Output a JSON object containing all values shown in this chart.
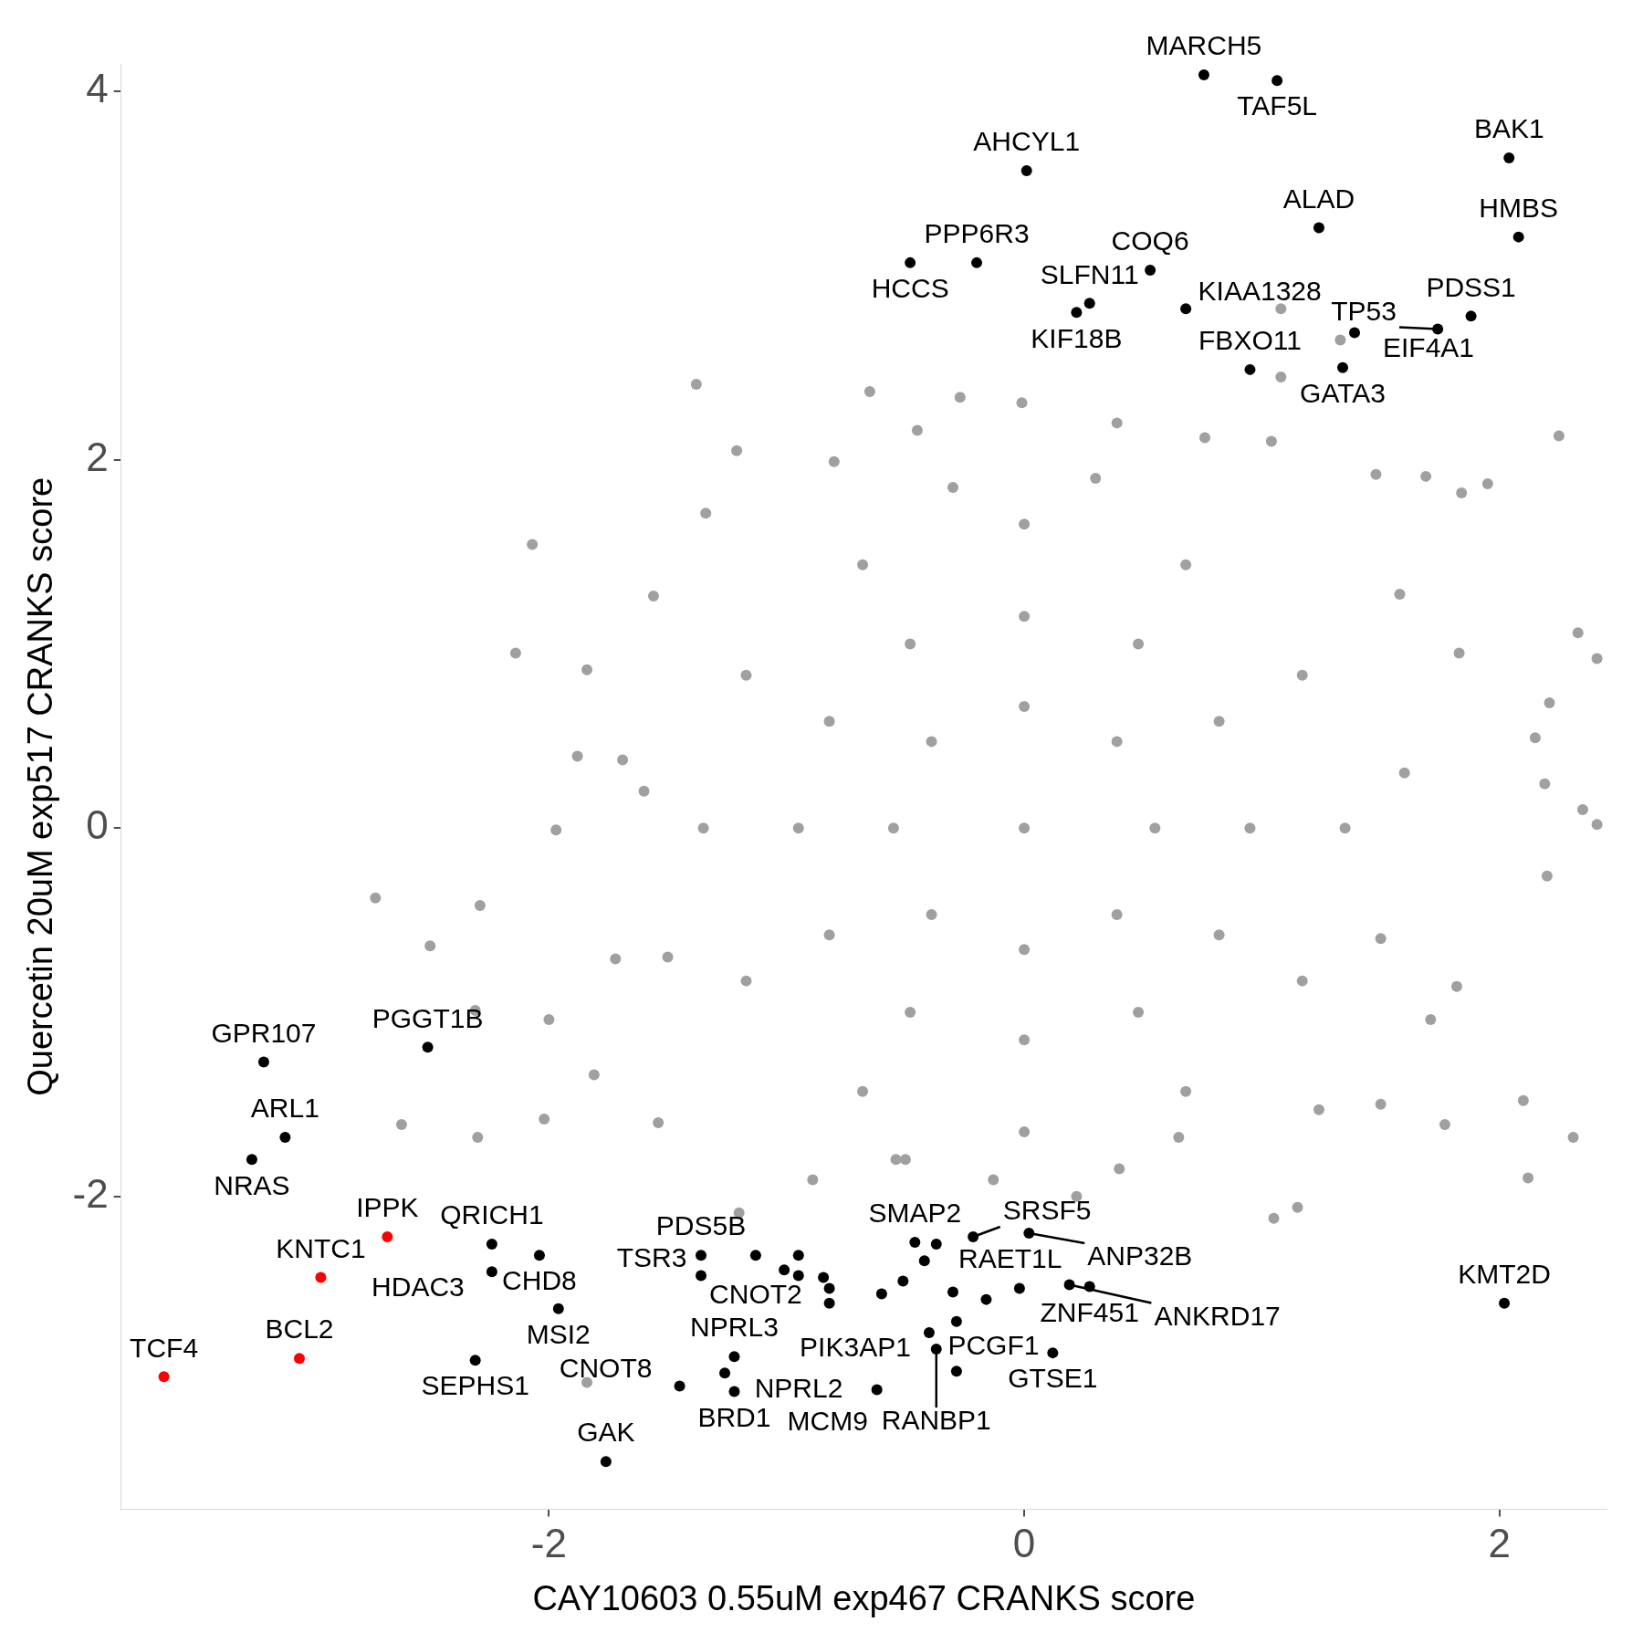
{
  "chart_data": {
    "type": "scatter",
    "xlabel": "CAY10603 0.55uM exp467 CRANKS score",
    "ylabel": "Quercetin 20uM exp517 CRANKS score",
    "xlim": [
      -3.8,
      2.45
    ],
    "ylim": [
      -3.7,
      4.15
    ],
    "xticks": [
      -2,
      0,
      2
    ],
    "yticks": [
      -2,
      0,
      2,
      4
    ],
    "legend": false,
    "marker": "circle",
    "series": [
      {
        "color": "#a0a0a0",
        "x": [
          -1.38,
          -0.65,
          -0.27,
          -0.01,
          -2.07,
          -2.14,
          2.25,
          1.95,
          2.33,
          2.41,
          2.35,
          2.41,
          2.21,
          2.15,
          2.19,
          2.2,
          2.1,
          2.12,
          2.31,
          1.77,
          1.15,
          1.05,
          -2.73,
          -2.5,
          -2.62,
          -2.3,
          -2.31,
          -2.29,
          -2.02,
          -1.84,
          -1.88,
          -1.84,
          -1.56,
          -1.34,
          -1.21,
          -0.8,
          -0.45,
          0.39,
          0.76,
          1.08,
          1.33,
          1.08,
          1.04,
          1.48,
          1.69,
          1.84,
          1.58,
          1.83,
          1.82,
          1.71,
          1.5,
          1.24,
          0.65,
          0.22,
          -0.13,
          -0.54,
          -0.89,
          -1.2,
          -1.54,
          -1.72,
          -1.69,
          -1.97,
          -2.0,
          -1.81,
          1.35,
          1.17,
          0.68,
          0,
          -0.68,
          -1.17,
          -1.35,
          -1.17,
          -0.68,
          0,
          0.68,
          1.17,
          0.95,
          0.82,
          0.48,
          0,
          -0.48,
          -0.82,
          -0.95,
          -0.82,
          -0.48,
          0,
          0.48,
          0.82,
          0.55,
          0.39,
          0,
          -0.39,
          -0.55,
          -0.39,
          0,
          0.39,
          0,
          1.6,
          1.5,
          -1.6,
          -1.5,
          0.3,
          -0.3,
          0.4,
          -0.5
        ],
        "values": [
          2.41,
          2.37,
          2.34,
          2.31,
          1.54,
          0.95,
          2.13,
          1.87,
          1.06,
          0.92,
          0.1,
          0.02,
          0.68,
          0.49,
          0.24,
          -0.26,
          -1.48,
          -1.9,
          -1.68,
          -1.61,
          -2.06,
          -2.12,
          -0.38,
          -0.64,
          -1.61,
          -1.68,
          -0.99,
          -0.42,
          -1.58,
          -3.01,
          0.39,
          0.86,
          1.26,
          1.71,
          2.05,
          1.99,
          2.16,
          2.2,
          2.12,
          2.82,
          2.65,
          2.45,
          2.1,
          1.92,
          1.91,
          1.82,
          1.27,
          0.95,
          -0.86,
          -1.04,
          -1.5,
          -1.53,
          -1.68,
          -2.0,
          -1.91,
          -1.8,
          -1.91,
          -2.09,
          -1.6,
          -0.71,
          0.37,
          -0.01,
          -1.04,
          -1.34,
          0,
          0.83,
          1.43,
          1.65,
          1.43,
          0.83,
          0,
          -0.83,
          -1.43,
          -1.65,
          -1.43,
          -0.83,
          0,
          0.58,
          1.0,
          1.15,
          1.0,
          0.58,
          0,
          -0.58,
          -1.0,
          -1.15,
          -1.0,
          -0.58,
          0,
          0.47,
          0.66,
          0.47,
          0,
          -0.47,
          -0.66,
          -0.47,
          0,
          0.3,
          -0.6,
          0.2,
          -0.7,
          1.9,
          1.85,
          -1.85,
          -1.8
        ]
      },
      {
        "color": "#000000",
        "x": [
          0.756,
          1.064,
          2.04,
          0.01,
          2.08,
          1.24,
          -0.2,
          -0.48,
          0.53,
          0.275,
          0.22,
          0.68,
          1.88,
          1.39,
          1.74,
          0.95,
          1.34,
          -3.2,
          -2.51,
          -3.11,
          -3.25,
          -2.24,
          -2.04,
          -2.24,
          -1.96,
          -2.31,
          -1.76,
          -1.45,
          -1.22,
          -1.26,
          -1.22,
          -1.36,
          -1.36,
          -1.13,
          -0.46,
          -0.37,
          -0.215,
          0.02,
          0.275,
          0.19,
          0.12,
          -0.4,
          -0.37,
          -0.285,
          -0.62,
          2.02,
          -1.01,
          -0.95,
          -0.95,
          -0.845,
          -0.82,
          -0.82,
          -0.6,
          -0.51,
          -0.42,
          -0.3,
          -0.285,
          -0.16,
          -0.02
        ],
        "values": [
          4.09,
          4.06,
          3.64,
          3.57,
          3.21,
          3.26,
          3.07,
          3.07,
          3.03,
          2.85,
          2.8,
          2.82,
          2.78,
          2.69,
          2.71,
          2.49,
          2.5,
          -1.27,
          -1.19,
          -1.68,
          -1.8,
          -2.26,
          -2.32,
          -2.41,
          -2.61,
          -2.89,
          -3.44,
          -3.03,
          -2.87,
          -2.96,
          -3.06,
          -2.32,
          -2.43,
          -2.32,
          -2.25,
          -2.26,
          -2.22,
          -2.2,
          -2.49,
          -2.48,
          -2.85,
          -2.74,
          -2.83,
          -2.95,
          -3.05,
          -2.58,
          -2.4,
          -2.32,
          -2.43,
          -2.44,
          -2.5,
          -2.58,
          -2.53,
          -2.46,
          -2.35,
          -2.52,
          -2.68,
          -2.56,
          -2.5
        ]
      },
      {
        "color": "#ff0000",
        "x": [
          -2.68,
          -2.96,
          -3.05,
          -3.62
        ],
        "values": [
          -2.22,
          -2.44,
          -2.88,
          -2.98
        ]
      }
    ],
    "annotations": [
      {
        "text": "MARCH5",
        "x": 0.756,
        "y": 4.09
      },
      {
        "text": "TAF5L",
        "x": 1.064,
        "y": 4.06
      },
      {
        "text": "BAK1",
        "x": 2.04,
        "y": 3.64
      },
      {
        "text": "AHCYL1",
        "x": 0.01,
        "y": 3.57
      },
      {
        "text": "HMBS",
        "x": 2.08,
        "y": 3.21
      },
      {
        "text": "ALAD",
        "x": 1.24,
        "y": 3.26
      },
      {
        "text": "PPP6R3",
        "x": -0.2,
        "y": 3.07
      },
      {
        "text": "HCCS",
        "x": -0.48,
        "y": 3.07
      },
      {
        "text": "COQ6",
        "x": 0.53,
        "y": 3.03
      },
      {
        "text": "SLFN11",
        "x": 0.275,
        "y": 2.85
      },
      {
        "text": "KIF18B",
        "x": 0.22,
        "y": 2.8
      },
      {
        "text": "KIAA1328",
        "x": 0.68,
        "y": 2.82
      },
      {
        "text": "PDSS1",
        "x": 1.88,
        "y": 2.78
      },
      {
        "text": "EIF4A1",
        "x": 1.39,
        "y": 2.69
      },
      {
        "text": "TP53",
        "x": 1.74,
        "y": 2.71
      },
      {
        "text": "FBXO11",
        "x": 0.95,
        "y": 2.49
      },
      {
        "text": "GATA3",
        "x": 1.34,
        "y": 2.5
      },
      {
        "text": "GPR107",
        "x": -3.2,
        "y": -1.27
      },
      {
        "text": "PGGT1B",
        "x": -2.51,
        "y": -1.19
      },
      {
        "text": "ARL1",
        "x": -3.11,
        "y": -1.68
      },
      {
        "text": "NRAS",
        "x": -3.25,
        "y": -1.8
      },
      {
        "text": "IPPK",
        "x": -2.68,
        "y": -2.22
      },
      {
        "text": "KNTC1",
        "x": -2.96,
        "y": -2.44
      },
      {
        "text": "BCL2",
        "x": -3.05,
        "y": -2.88
      },
      {
        "text": "TCF4",
        "x": -3.62,
        "y": -2.98
      },
      {
        "text": "QRICH1",
        "x": -2.24,
        "y": -2.26
      },
      {
        "text": "CHD8",
        "x": -2.04,
        "y": -2.32
      },
      {
        "text": "HDAC3",
        "x": -2.24,
        "y": -2.41
      },
      {
        "text": "MSI2",
        "x": -1.96,
        "y": -2.61
      },
      {
        "text": "SEPHS1",
        "x": -2.31,
        "y": -2.89
      },
      {
        "text": "GAK",
        "x": -1.76,
        "y": -3.44
      },
      {
        "text": "CNOT8",
        "x": -1.45,
        "y": -3.03
      },
      {
        "text": "NPRL3",
        "x": -1.22,
        "y": -2.87
      },
      {
        "text": "NPRL2",
        "x": -1.26,
        "y": -2.96
      },
      {
        "text": "BRD1",
        "x": -1.22,
        "y": -3.06
      },
      {
        "text": "PDS5B",
        "x": -1.36,
        "y": -2.32
      },
      {
        "text": "TSR3",
        "x": -1.36,
        "y": -2.43
      },
      {
        "text": "CNOT2",
        "x": -1.13,
        "y": -2.32
      },
      {
        "text": "SMAP2",
        "x": -0.46,
        "y": -2.25
      },
      {
        "text": "RAET1L",
        "x": -0.37,
        "y": -2.26
      },
      {
        "text": "SRSF5",
        "x": -0.215,
        "y": -2.22
      },
      {
        "text": "ANP32B",
        "x": 0.02,
        "y": -2.2
      },
      {
        "text": "ZNF451",
        "x": 0.275,
        "y": -2.49
      },
      {
        "text": "ANKRD17",
        "x": 0.19,
        "y": -2.48
      },
      {
        "text": "GTSE1",
        "x": 0.12,
        "y": -2.85
      },
      {
        "text": "PIK3AP1",
        "x": -0.4,
        "y": -2.74
      },
      {
        "text": "RANBP1",
        "x": -0.37,
        "y": -2.83
      },
      {
        "text": "PCGF1",
        "x": -0.285,
        "y": -2.95
      },
      {
        "text": "MCM9",
        "x": -0.62,
        "y": -3.05
      },
      {
        "text": "KMT2D",
        "x": 2.02,
        "y": -2.58
      }
    ]
  }
}
